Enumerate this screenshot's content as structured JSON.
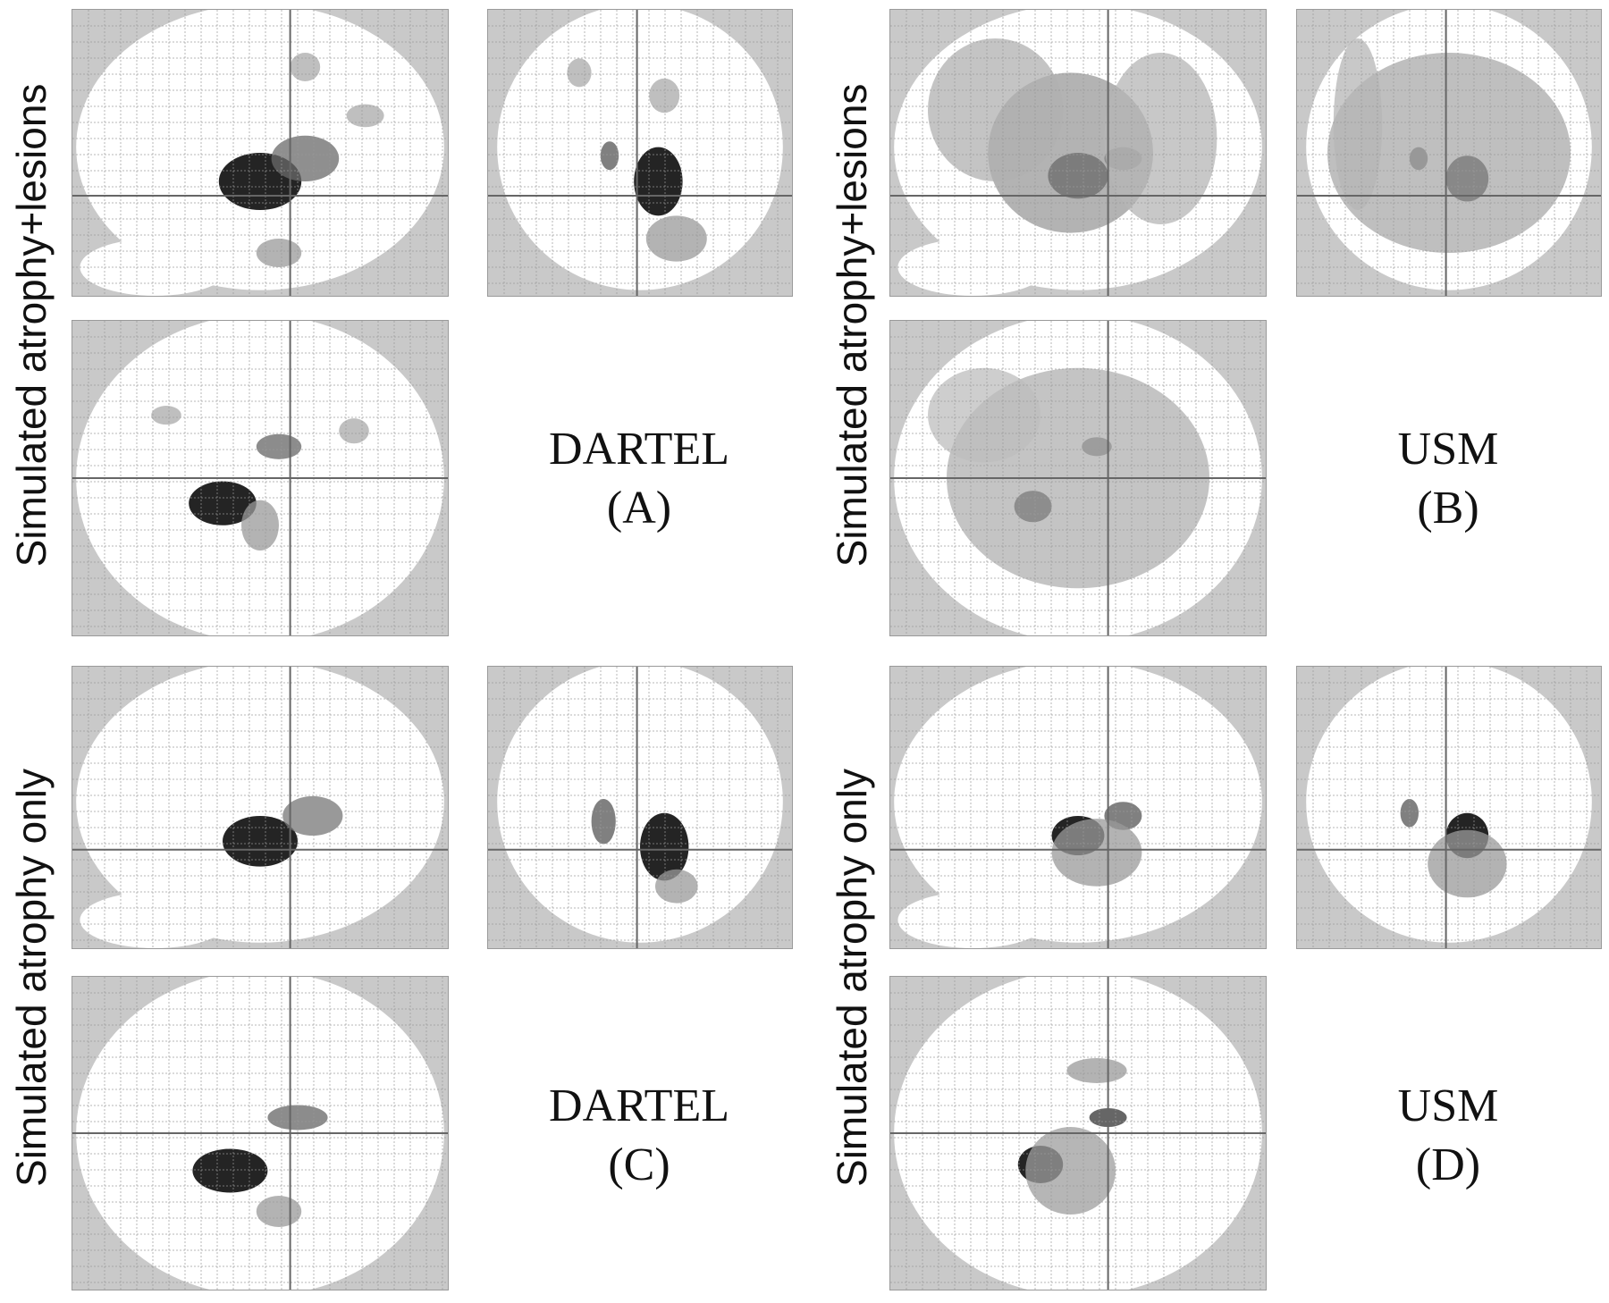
{
  "panels": [
    {
      "id": "A",
      "row_label": "Simulated atrophy+lesions",
      "method": "DARTEL",
      "letter": "(A)"
    },
    {
      "id": "B",
      "row_label": "Simulated atrophy+lesions",
      "method": "USM",
      "letter": "(B)"
    },
    {
      "id": "C",
      "row_label": "Simulated atrophy only",
      "method": "DARTEL",
      "letter": "(C)"
    },
    {
      "id": "D",
      "row_label": "Simulated atrophy only",
      "method": "USM",
      "letter": "(D)"
    }
  ],
  "colors": {
    "background_mask": "#c9c9c9",
    "brain": "#ffffff",
    "grid": "#9a9a9a",
    "crosshair": "#666666"
  }
}
